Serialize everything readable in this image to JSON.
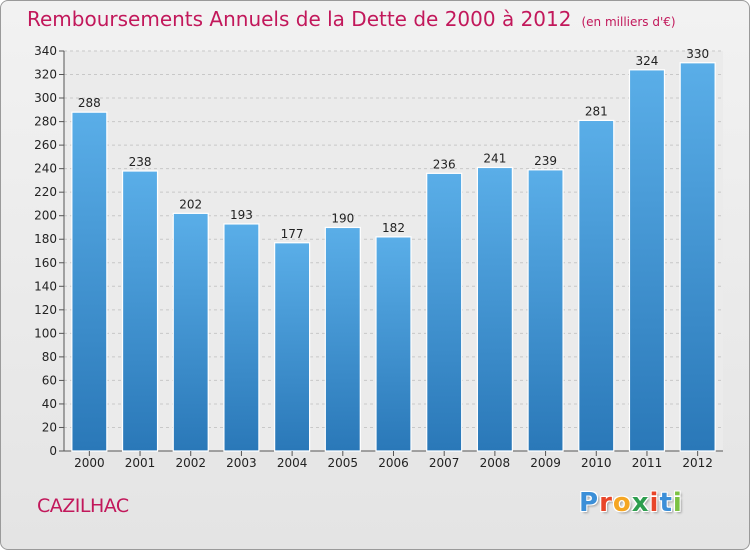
{
  "chart_data": {
    "type": "bar",
    "title": "Remboursements Annuels de la Dette de 2000 à 2012",
    "subtitle": "(en milliers d'€)",
    "categories": [
      "2000",
      "2001",
      "2002",
      "2003",
      "2004",
      "2005",
      "2006",
      "2007",
      "2008",
      "2009",
      "2010",
      "2011",
      "2012"
    ],
    "values": [
      288,
      238,
      202,
      193,
      177,
      190,
      182,
      236,
      241,
      239,
      281,
      324,
      330
    ],
    "ylim": [
      0,
      340
    ],
    "ytick_step": 20,
    "grid": true,
    "bar_color_top": "#5aaee8",
    "bar_color_bottom": "#2a78b8"
  },
  "footer": {
    "city": "CAZILHAC",
    "logo_letters": [
      "P",
      "r",
      "o",
      "x",
      "i",
      "t",
      "i"
    ],
    "logo_colors": [
      "#3b8fd8",
      "#e8462a",
      "#f5a623",
      "#2e9e4f",
      "#e8462a",
      "#3b8fd8",
      "#7cc242"
    ]
  }
}
